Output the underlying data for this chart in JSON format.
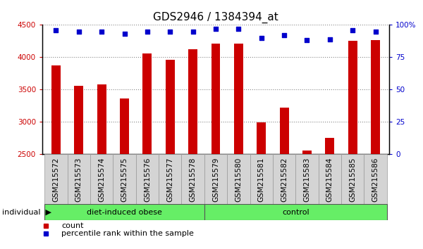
{
  "title": "GDS2946 / 1384394_at",
  "categories": [
    "GSM215572",
    "GSM215573",
    "GSM215574",
    "GSM215575",
    "GSM215576",
    "GSM215577",
    "GSM215578",
    "GSM215579",
    "GSM215580",
    "GSM215581",
    "GSM215582",
    "GSM215583",
    "GSM215584",
    "GSM215585",
    "GSM215586"
  ],
  "bar_values": [
    3870,
    3560,
    3580,
    3360,
    4060,
    3960,
    4120,
    4210,
    4210,
    2990,
    3220,
    2560,
    2750,
    4250,
    4260
  ],
  "bar_bottom": 2500,
  "dot_values_pct": [
    96,
    95,
    95,
    93,
    95,
    95,
    95,
    97,
    97,
    90,
    92,
    88,
    89,
    96,
    95
  ],
  "ylim_left": [
    2500,
    4500
  ],
  "ylim_right": [
    0,
    100
  ],
  "yticks_left": [
    2500,
    3000,
    3500,
    4000,
    4500
  ],
  "yticks_right": [
    0,
    25,
    50,
    75,
    100
  ],
  "ytick_labels_right": [
    "0",
    "25",
    "50",
    "75",
    "100%"
  ],
  "bar_color": "#cc0000",
  "dot_color": "#0000cc",
  "group1_label": "diet-induced obese",
  "group1_count": 7,
  "group2_label": "control",
  "group2_count": 8,
  "group_color": "#66ee66",
  "group_label": "individual",
  "legend_count_label": "count",
  "legend_dot_label": "percentile rank within the sample",
  "grid_color": "#888888",
  "bg_color": "#ffffff",
  "xtick_bg_color": "#d4d4d4",
  "tick_label_color_left": "#cc0000",
  "tick_label_color_right": "#0000cc",
  "title_fontsize": 11,
  "tick_fontsize": 7.5,
  "bar_width": 0.4
}
